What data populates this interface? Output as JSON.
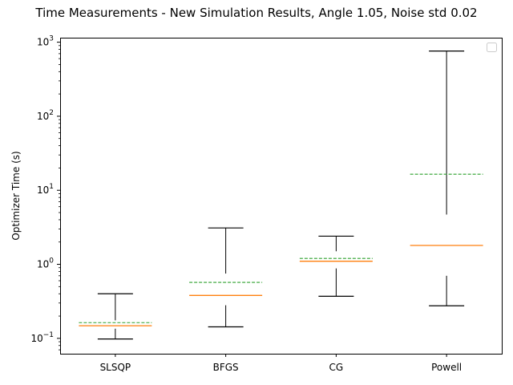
{
  "chart_data": {
    "type": "boxplot",
    "title": "Time Measurements - New Simulation Results, Angle 1.05, Noise std 0.02",
    "xlabel": "",
    "ylabel": "Optimizer Time (s)",
    "yscale": "log",
    "ylim": [
      0.062,
      1150
    ],
    "yticks": [
      {
        "value": 0.1,
        "base": "10",
        "exp": "−1"
      },
      {
        "value": 1,
        "base": "10",
        "exp": "0"
      },
      {
        "value": 10,
        "base": "10",
        "exp": "1"
      },
      {
        "value": 100,
        "base": "10",
        "exp": "2"
      },
      {
        "value": 1000,
        "base": "10",
        "exp": "3"
      }
    ],
    "categories": [
      "SLSQP",
      "BFGS",
      "CG",
      "Powell"
    ],
    "boxes": [
      {
        "name": "SLSQP",
        "whisker_low": 0.098,
        "q1": 0.135,
        "median": 0.148,
        "mean": 0.163,
        "q3": 0.175,
        "whisker_high": 0.4
      },
      {
        "name": "BFGS",
        "whisker_low": 0.143,
        "q1": 0.28,
        "median": 0.38,
        "mean": 0.57,
        "q3": 0.75,
        "whisker_high": 3.1
      },
      {
        "name": "CG",
        "whisker_low": 0.37,
        "q1": 0.88,
        "median": 1.1,
        "mean": 1.2,
        "q3": 1.5,
        "whisker_high": 2.4
      },
      {
        "name": "Powell",
        "whisker_low": 0.275,
        "q1": 0.7,
        "median": 1.8,
        "mean": 16.5,
        "q3": 4.7,
        "whisker_high": 760
      }
    ],
    "colors": {
      "median": "#ff7f0e",
      "mean": "#2ca02c",
      "box": "#000000"
    },
    "grid": false,
    "legend": {
      "placement": "top-right",
      "entries": []
    }
  }
}
